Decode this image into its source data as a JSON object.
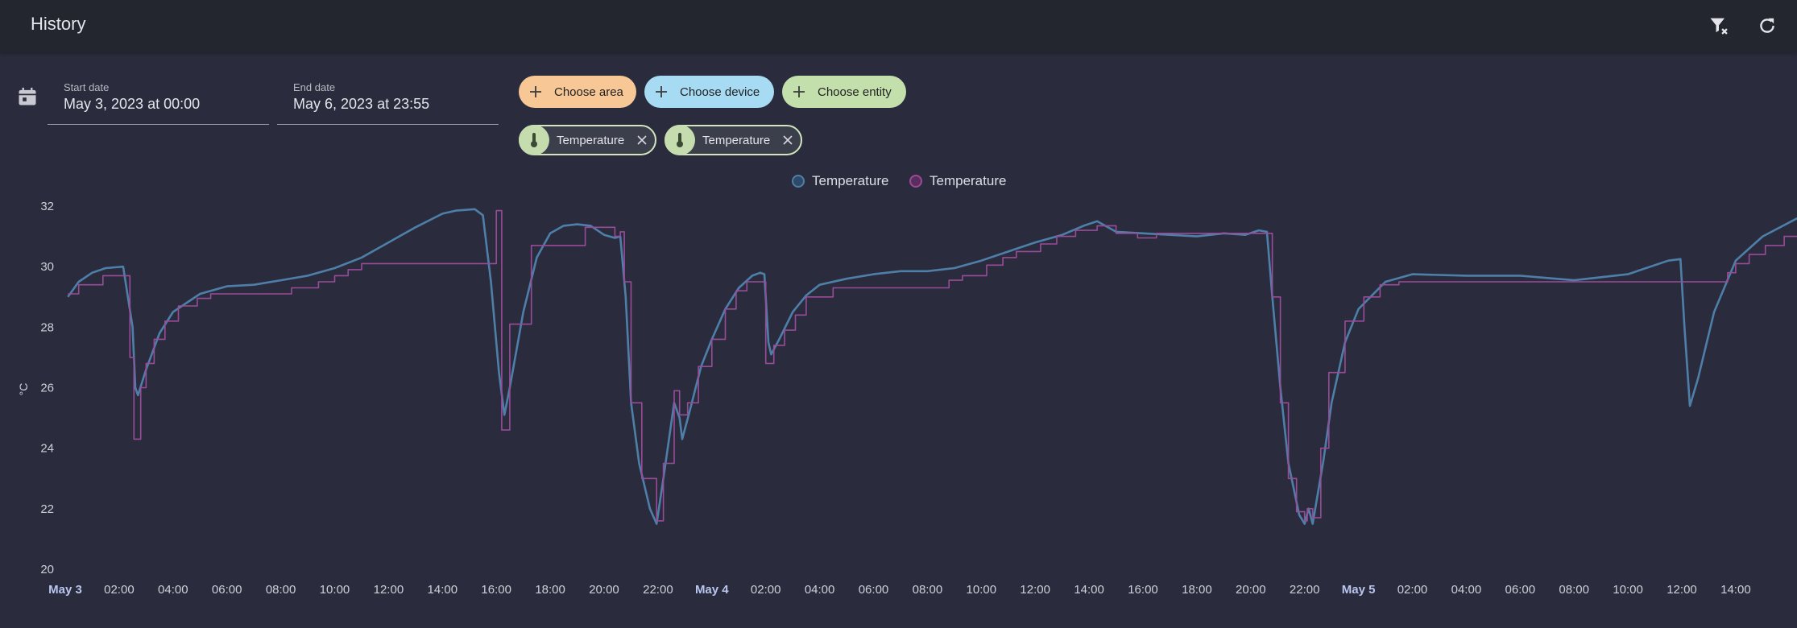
{
  "header": {
    "title": "History"
  },
  "dates": {
    "start_label": "Start date",
    "start_value": "May 3, 2023 at 00:00",
    "end_label": "End date",
    "end_value": "May 6, 2023 at 23:55"
  },
  "pickers": {
    "area": "Choose area",
    "device": "Choose device",
    "entity": "Choose entity"
  },
  "selected_entities": [
    {
      "name": "Temperature"
    },
    {
      "name": "Temperature"
    }
  ],
  "colors": {
    "series1": "#4e7fa8",
    "series2": "#9a4b98",
    "area_chip": "#f8c796",
    "device_chip": "#a6dbf3",
    "entity_chip": "#c3dfac"
  },
  "chart_data": {
    "type": "line",
    "ylabel": "°C",
    "ylim": [
      20,
      32
    ],
    "y_ticks": [
      "20",
      "22",
      "24",
      "26",
      "28",
      "30",
      "32"
    ],
    "x_ticks": [
      {
        "label": "May 3",
        "h": 0,
        "bold": true
      },
      {
        "label": "02:00",
        "h": 2
      },
      {
        "label": "04:00",
        "h": 4
      },
      {
        "label": "06:00",
        "h": 6
      },
      {
        "label": "08:00",
        "h": 8
      },
      {
        "label": "10:00",
        "h": 10
      },
      {
        "label": "12:00",
        "h": 12
      },
      {
        "label": "14:00",
        "h": 14
      },
      {
        "label": "16:00",
        "h": 16
      },
      {
        "label": "18:00",
        "h": 18
      },
      {
        "label": "20:00",
        "h": 20
      },
      {
        "label": "22:00",
        "h": 22
      },
      {
        "label": "May 4",
        "h": 24,
        "bold": true
      },
      {
        "label": "02:00",
        "h": 26
      },
      {
        "label": "04:00",
        "h": 28
      },
      {
        "label": "06:00",
        "h": 30
      },
      {
        "label": "08:00",
        "h": 32
      },
      {
        "label": "10:00",
        "h": 34
      },
      {
        "label": "12:00",
        "h": 36
      },
      {
        "label": "14:00",
        "h": 38
      },
      {
        "label": "16:00",
        "h": 40
      },
      {
        "label": "18:00",
        "h": 42
      },
      {
        "label": "20:00",
        "h": 44
      },
      {
        "label": "22:00",
        "h": 46
      },
      {
        "label": "May 5",
        "h": 48,
        "bold": true
      },
      {
        "label": "02:00",
        "h": 50
      },
      {
        "label": "04:00",
        "h": 52
      },
      {
        "label": "06:00",
        "h": 54
      },
      {
        "label": "08:00",
        "h": 56
      },
      {
        "label": "10:00",
        "h": 58
      },
      {
        "label": "12:00",
        "h": 60
      },
      {
        "label": "14:00",
        "h": 62
      }
    ],
    "series": [
      {
        "name": "Temperature",
        "color": "#4e7fa8",
        "step": false,
        "points": [
          [
            0.1,
            29.0
          ],
          [
            0.5,
            29.5
          ],
          [
            1.0,
            29.8
          ],
          [
            1.5,
            29.95
          ],
          [
            2.15,
            30.0
          ],
          [
            2.5,
            28.0
          ],
          [
            2.6,
            26.0
          ],
          [
            2.7,
            25.75
          ],
          [
            3.0,
            26.6
          ],
          [
            3.5,
            27.8
          ],
          [
            4.0,
            28.5
          ],
          [
            5.0,
            29.1
          ],
          [
            6.0,
            29.35
          ],
          [
            7.0,
            29.4
          ],
          [
            8.0,
            29.55
          ],
          [
            9.0,
            29.7
          ],
          [
            10.0,
            29.95
          ],
          [
            11.0,
            30.3
          ],
          [
            12.0,
            30.8
          ],
          [
            13.0,
            31.3
          ],
          [
            14.0,
            31.75
          ],
          [
            14.5,
            31.85
          ],
          [
            15.2,
            31.9
          ],
          [
            15.5,
            31.7
          ],
          [
            15.8,
            29.5
          ],
          [
            16.1,
            26.5
          ],
          [
            16.3,
            25.1
          ],
          [
            16.5,
            26.0
          ],
          [
            17.0,
            28.5
          ],
          [
            17.5,
            30.3
          ],
          [
            18.0,
            31.1
          ],
          [
            18.5,
            31.35
          ],
          [
            19.0,
            31.4
          ],
          [
            19.5,
            31.35
          ],
          [
            20.0,
            31.05
          ],
          [
            20.4,
            30.95
          ],
          [
            20.6,
            31.0
          ],
          [
            20.8,
            29.0
          ],
          [
            21.0,
            25.5
          ],
          [
            21.3,
            23.5
          ],
          [
            21.7,
            22.0
          ],
          [
            21.95,
            21.5
          ],
          [
            22.2,
            23.0
          ],
          [
            22.6,
            25.5
          ],
          [
            22.8,
            25.0
          ],
          [
            22.9,
            24.3
          ],
          [
            23.2,
            25.3
          ],
          [
            23.6,
            26.7
          ],
          [
            24.0,
            27.6
          ],
          [
            24.5,
            28.6
          ],
          [
            25.0,
            29.3
          ],
          [
            25.5,
            29.7
          ],
          [
            25.8,
            29.8
          ],
          [
            25.95,
            29.75
          ],
          [
            26.1,
            27.5
          ],
          [
            26.2,
            27.1
          ],
          [
            26.5,
            27.6
          ],
          [
            27.0,
            28.5
          ],
          [
            27.5,
            29.05
          ],
          [
            28.0,
            29.4
          ],
          [
            29.0,
            29.6
          ],
          [
            30.0,
            29.75
          ],
          [
            31.0,
            29.85
          ],
          [
            32.0,
            29.85
          ],
          [
            33.0,
            29.95
          ],
          [
            34.0,
            30.2
          ],
          [
            35.0,
            30.5
          ],
          [
            36.0,
            30.8
          ],
          [
            37.0,
            31.05
          ],
          [
            37.8,
            31.35
          ],
          [
            38.3,
            31.5
          ],
          [
            38.7,
            31.3
          ],
          [
            39.0,
            31.15
          ],
          [
            40.0,
            31.1
          ],
          [
            41.0,
            31.05
          ],
          [
            42.0,
            31.0
          ],
          [
            43.0,
            31.1
          ],
          [
            43.8,
            31.05
          ],
          [
            44.3,
            31.2
          ],
          [
            44.6,
            31.15
          ],
          [
            44.8,
            29.0
          ],
          [
            45.1,
            26.0
          ],
          [
            45.4,
            23.5
          ],
          [
            45.8,
            21.8
          ],
          [
            46.0,
            21.5
          ],
          [
            46.15,
            22.0
          ],
          [
            46.3,
            21.5
          ],
          [
            46.7,
            23.6
          ],
          [
            47.0,
            25.5
          ],
          [
            47.5,
            27.5
          ],
          [
            48.0,
            28.6
          ],
          [
            49.0,
            29.5
          ],
          [
            50.0,
            29.75
          ],
          [
            52.0,
            29.7
          ],
          [
            54.0,
            29.7
          ],
          [
            56.0,
            29.55
          ],
          [
            58.0,
            29.75
          ],
          [
            59.5,
            30.2
          ],
          [
            59.95,
            30.25
          ],
          [
            60.1,
            28.0
          ],
          [
            60.3,
            25.4
          ],
          [
            60.6,
            26.3
          ],
          [
            61.2,
            28.5
          ],
          [
            62.0,
            30.2
          ],
          [
            63.0,
            31.0
          ],
          [
            64.5,
            31.7
          ],
          [
            65.0,
            31.7
          ]
        ]
      },
      {
        "name": "Temperature",
        "color": "#9a4b98",
        "step": true,
        "points": [
          [
            0.1,
            29.1
          ],
          [
            0.5,
            29.4
          ],
          [
            1.4,
            29.7
          ],
          [
            2.2,
            29.7
          ],
          [
            2.4,
            27.0
          ],
          [
            2.55,
            24.3
          ],
          [
            2.8,
            26.0
          ],
          [
            3.0,
            26.8
          ],
          [
            3.3,
            27.6
          ],
          [
            3.7,
            28.2
          ],
          [
            4.2,
            28.7
          ],
          [
            4.9,
            28.95
          ],
          [
            5.4,
            29.1
          ],
          [
            8.4,
            29.3
          ],
          [
            9.4,
            29.5
          ],
          [
            10.0,
            29.7
          ],
          [
            10.5,
            29.9
          ],
          [
            11.0,
            30.1
          ],
          [
            16.0,
            31.85
          ],
          [
            16.2,
            24.6
          ],
          [
            16.5,
            28.1
          ],
          [
            17.3,
            30.7
          ],
          [
            19.3,
            31.3
          ],
          [
            20.4,
            31.0
          ],
          [
            20.6,
            31.15
          ],
          [
            20.75,
            29.5
          ],
          [
            21.0,
            25.5
          ],
          [
            21.4,
            23.0
          ],
          [
            21.95,
            21.6
          ],
          [
            22.2,
            23.5
          ],
          [
            22.6,
            25.9
          ],
          [
            22.8,
            25.1
          ],
          [
            23.1,
            25.5
          ],
          [
            23.5,
            26.7
          ],
          [
            24.0,
            27.6
          ],
          [
            24.5,
            28.6
          ],
          [
            24.9,
            29.2
          ],
          [
            25.3,
            29.5
          ],
          [
            26.0,
            26.8
          ],
          [
            26.3,
            27.4
          ],
          [
            26.7,
            27.9
          ],
          [
            27.1,
            28.4
          ],
          [
            27.5,
            29.0
          ],
          [
            28.5,
            29.3
          ],
          [
            32.8,
            29.55
          ],
          [
            33.3,
            29.7
          ],
          [
            34.2,
            30.05
          ],
          [
            34.8,
            30.3
          ],
          [
            35.3,
            30.5
          ],
          [
            36.2,
            30.75
          ],
          [
            36.8,
            31.0
          ],
          [
            37.5,
            31.2
          ],
          [
            38.3,
            31.35
          ],
          [
            39.0,
            31.1
          ],
          [
            39.8,
            30.95
          ],
          [
            40.5,
            31.1
          ],
          [
            42.0,
            31.1
          ],
          [
            43.1,
            31.1
          ],
          [
            44.3,
            31.1
          ],
          [
            44.8,
            29.0
          ],
          [
            45.1,
            25.5
          ],
          [
            45.4,
            23.0
          ],
          [
            45.7,
            21.9
          ],
          [
            46.0,
            21.6
          ],
          [
            46.1,
            22.0
          ],
          [
            46.3,
            21.7
          ],
          [
            46.6,
            24.0
          ],
          [
            46.9,
            26.5
          ],
          [
            47.5,
            28.2
          ],
          [
            48.2,
            29.0
          ],
          [
            48.8,
            29.4
          ],
          [
            49.5,
            29.5
          ],
          [
            61.5,
            29.5
          ],
          [
            61.7,
            29.8
          ],
          [
            62.0,
            30.1
          ],
          [
            62.5,
            30.4
          ],
          [
            63.1,
            30.7
          ],
          [
            63.8,
            31.0
          ],
          [
            64.5,
            31.3
          ],
          [
            65.0,
            31.6
          ],
          [
            65.5,
            31.7
          ]
        ]
      }
    ]
  }
}
